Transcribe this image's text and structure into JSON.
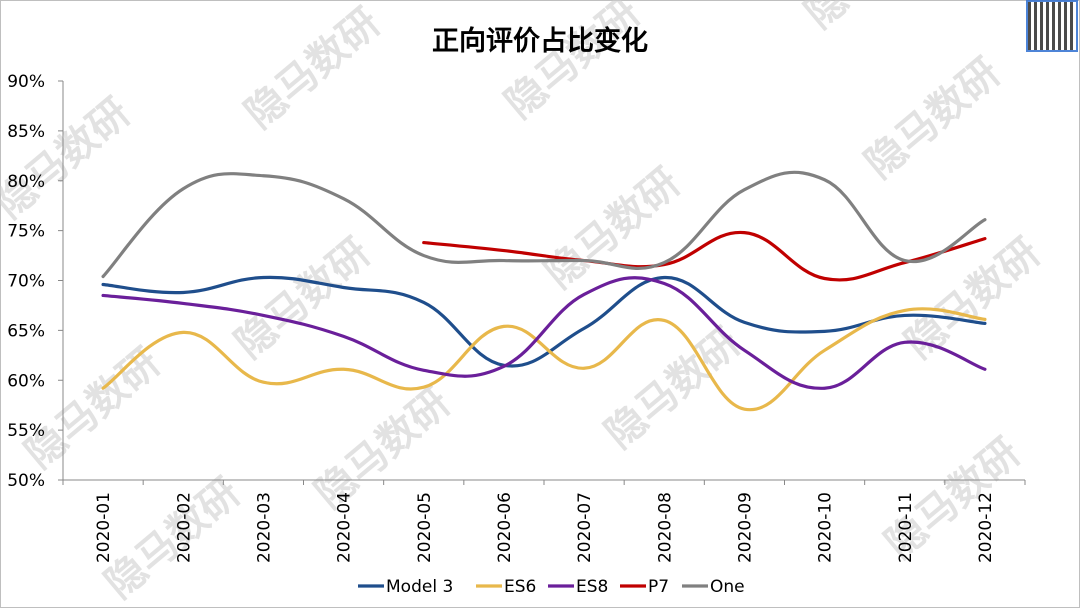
{
  "chart_data": {
    "type": "line",
    "title": "正向评价占比变化",
    "categories": [
      "2020-01",
      "2020-02",
      "2020-03",
      "2020-04",
      "2020-05",
      "2020-06",
      "2020-07",
      "2020-08",
      "2020-09",
      "2020-10",
      "2020-11",
      "2020-12"
    ],
    "ylim": [
      0.5,
      0.9
    ],
    "yticks": [
      "90%",
      "85%",
      "80%",
      "75%",
      "70%",
      "65%",
      "60%",
      "55%",
      "50%"
    ],
    "ytick_values": [
      0.9,
      0.85,
      0.8,
      0.75,
      0.7,
      0.65,
      0.6,
      0.55,
      0.5
    ],
    "grid": false,
    "legend_position": "bottom",
    "series": [
      {
        "name": "Model 3",
        "color": "#1f4e8c",
        "values": [
          0.696,
          0.688,
          0.703,
          0.693,
          0.678,
          0.615,
          0.652,
          0.703,
          0.658,
          0.649,
          0.665,
          0.657
        ]
      },
      {
        "name": "ES6",
        "color": "#e8b84b",
        "values": [
          0.592,
          0.648,
          0.598,
          0.611,
          0.593,
          0.654,
          0.612,
          0.66,
          0.571,
          0.63,
          0.67,
          0.661
        ]
      },
      {
        "name": "ES8",
        "color": "#6a1f9a",
        "values": [
          0.685,
          0.677,
          0.665,
          0.644,
          0.61,
          0.614,
          0.686,
          0.697,
          0.63,
          0.592,
          0.638,
          0.611
        ]
      },
      {
        "name": "P7",
        "color": "#c00000",
        "values": [
          null,
          null,
          null,
          null,
          0.738,
          0.73,
          0.72,
          0.716,
          0.748,
          0.702,
          0.718,
          0.742
        ]
      },
      {
        "name": "One",
        "color": "#808080",
        "values": [
          0.704,
          0.792,
          0.805,
          0.782,
          0.725,
          0.72,
          0.72,
          0.718,
          0.791,
          0.801,
          0.72,
          0.761
        ]
      }
    ]
  },
  "watermark": {
    "text": "隐马数研",
    "color": "#cccccc"
  }
}
